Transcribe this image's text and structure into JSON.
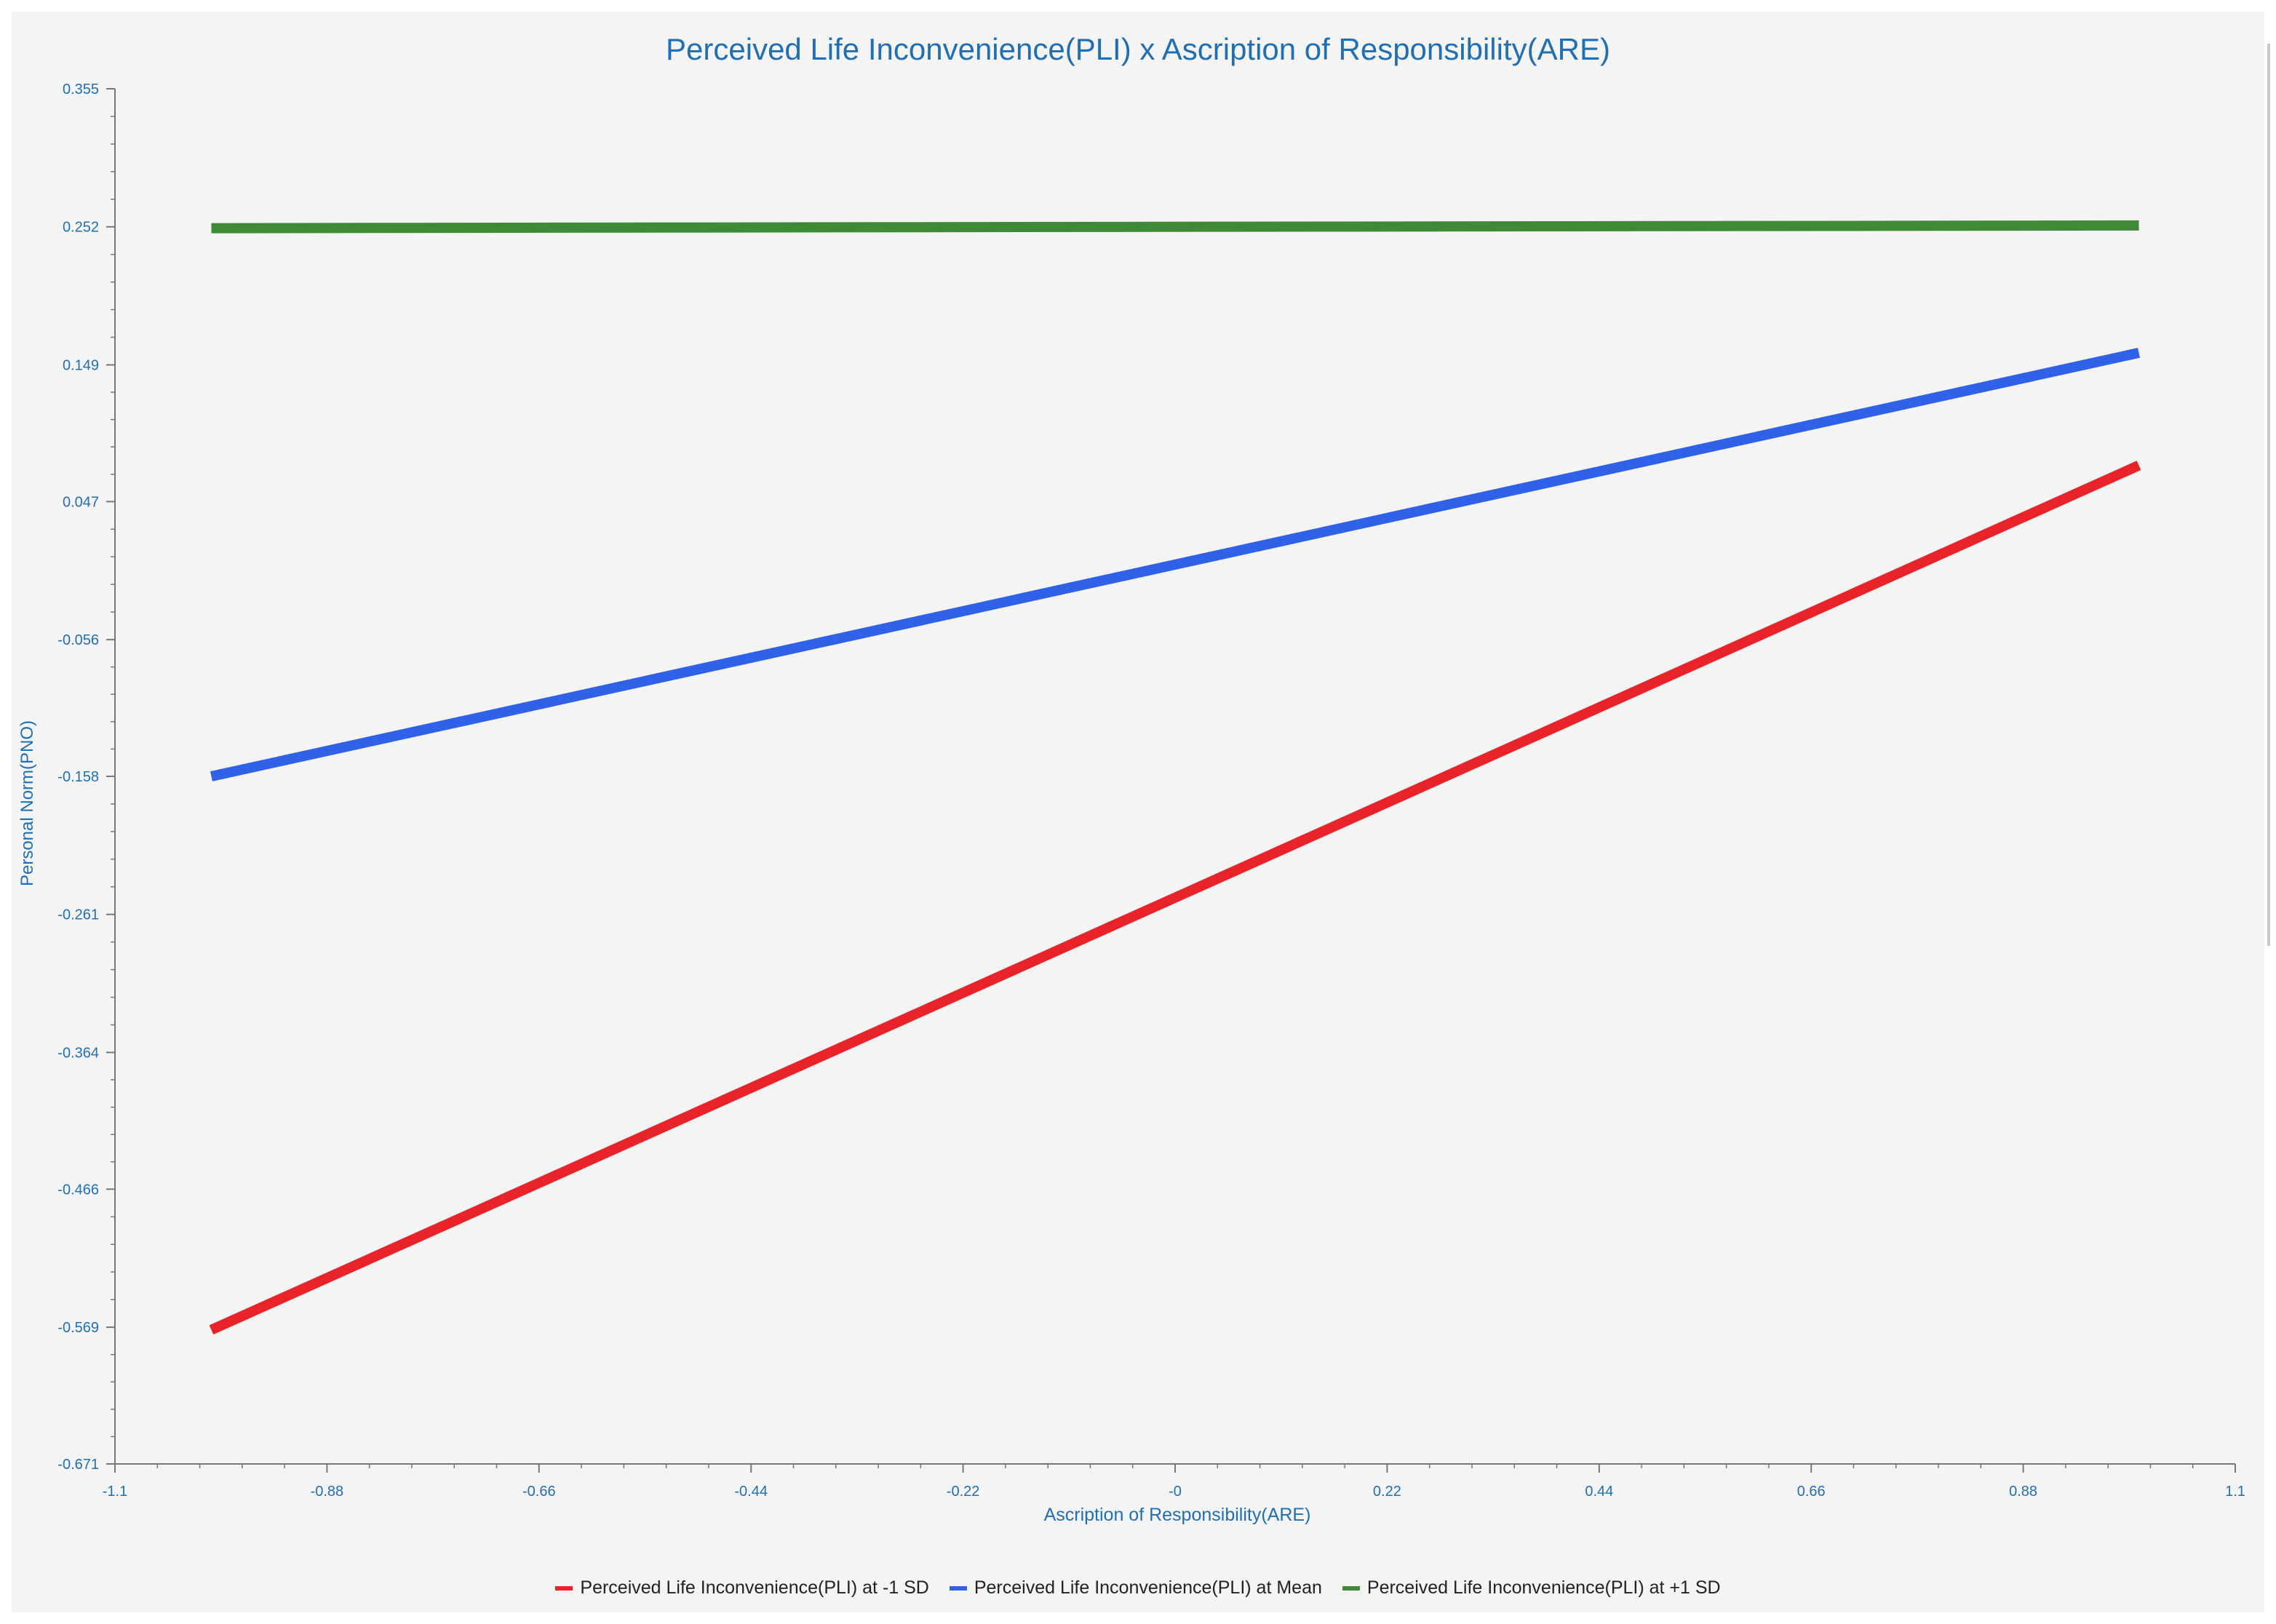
{
  "chart_data": {
    "type": "line",
    "title": "Perceived Life Inconvenience(PLI) x Ascription of Responsibility(ARE)",
    "xlabel": "Ascription of Responsibility(ARE)",
    "ylabel": "Personal Norm(PNO)",
    "xlim": [
      -1.1,
      1.1
    ],
    "ylim": [
      -0.671,
      0.355
    ],
    "x_ticks": [
      "-1.1",
      "-0.88",
      "-0.66",
      "-0.44",
      "-0.22",
      "-0",
      "0.22",
      "0.44",
      "0.66",
      "0.88",
      "1.1"
    ],
    "x_tick_values": [
      -1.1,
      -0.88,
      -0.66,
      -0.44,
      -0.22,
      0,
      0.22,
      0.44,
      0.66,
      0.88,
      1.1
    ],
    "y_ticks": [
      "0.355",
      "0.252",
      "0.149",
      "0.047",
      "-0.056",
      "-0.158",
      "-0.261",
      "-0.364",
      "-0.466",
      "-0.569",
      "-0.671"
    ],
    "y_tick_values": [
      0.355,
      0.252,
      0.149,
      0.047,
      -0.056,
      -0.158,
      -0.261,
      -0.364,
      -0.466,
      -0.569,
      -0.671
    ],
    "grid": false,
    "legend_position": "bottom-center",
    "series": [
      {
        "name": "Perceived Life Inconvenience(PLI) at -1 SD",
        "color": "#e8232a",
        "x": [
          -1.0,
          1.0
        ],
        "y": [
          -0.571,
          0.074
        ]
      },
      {
        "name": "Perceived Life Inconvenience(PLI) at Mean",
        "color": "#2f62e8",
        "x": [
          -1.0,
          1.0
        ],
        "y": [
          -0.158,
          0.158
        ]
      },
      {
        "name": "Perceived Life Inconvenience(PLI) at +1 SD",
        "color": "#3e8a36",
        "x": [
          -1.0,
          1.0
        ],
        "y": [
          0.251,
          0.253
        ]
      }
    ]
  }
}
